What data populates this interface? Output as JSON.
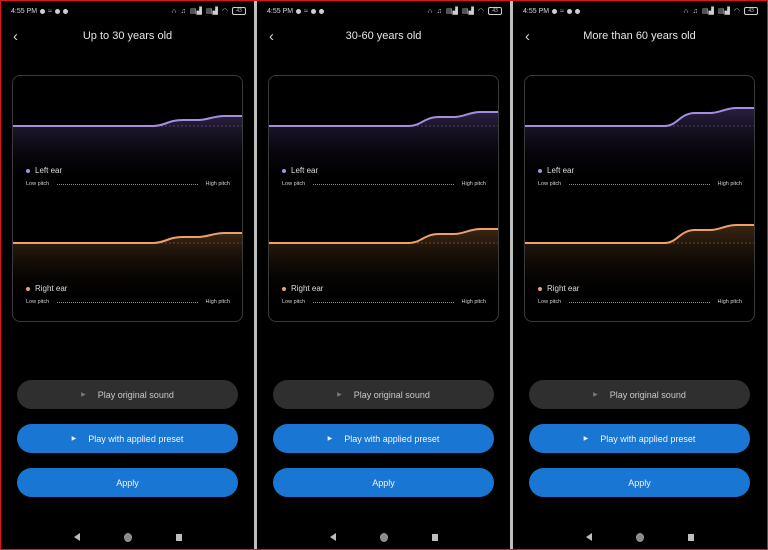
{
  "colors": {
    "left_ear": "#a48ee0",
    "right_ear": "#eea06c",
    "accent_blue": "#1976d2",
    "secondary_button": "#2f2f2f",
    "frame_border": "#e0141b"
  },
  "panels": [
    {
      "status": {
        "time": "4:55 PM",
        "battery": "43"
      },
      "header": {
        "back_icon": "chevron-left",
        "title": "Up to 30 years old"
      },
      "chart": {
        "left_ear_label": "Left ear",
        "right_ear_label": "Right ear",
        "low_pitch": "Low pitch",
        "high_pitch": "High pitch"
      },
      "buttons": {
        "play_original": "Play original sound",
        "play_preset": "Play with applied preset",
        "apply": "Apply"
      }
    },
    {
      "status": {
        "time": "4:55 PM",
        "battery": "43"
      },
      "header": {
        "back_icon": "chevron-left",
        "title": "30-60 years old"
      },
      "chart": {
        "left_ear_label": "Left ear",
        "right_ear_label": "Right ear",
        "low_pitch": "Low pitch",
        "high_pitch": "High pitch"
      },
      "buttons": {
        "play_original": "Play original sound",
        "play_preset": "Play with applied preset",
        "apply": "Apply"
      }
    },
    {
      "status": {
        "time": "4:55 PM",
        "battery": "43"
      },
      "header": {
        "back_icon": "chevron-left",
        "title": "More than 60 years old"
      },
      "chart": {
        "left_ear_label": "Left ear",
        "right_ear_label": "Right ear",
        "low_pitch": "Low pitch",
        "high_pitch": "High pitch"
      },
      "buttons": {
        "play_original": "Play original sound",
        "play_preset": "Play with applied preset",
        "apply": "Apply"
      }
    }
  ],
  "glyphs": {
    "back": "‹",
    "play": "▶"
  }
}
